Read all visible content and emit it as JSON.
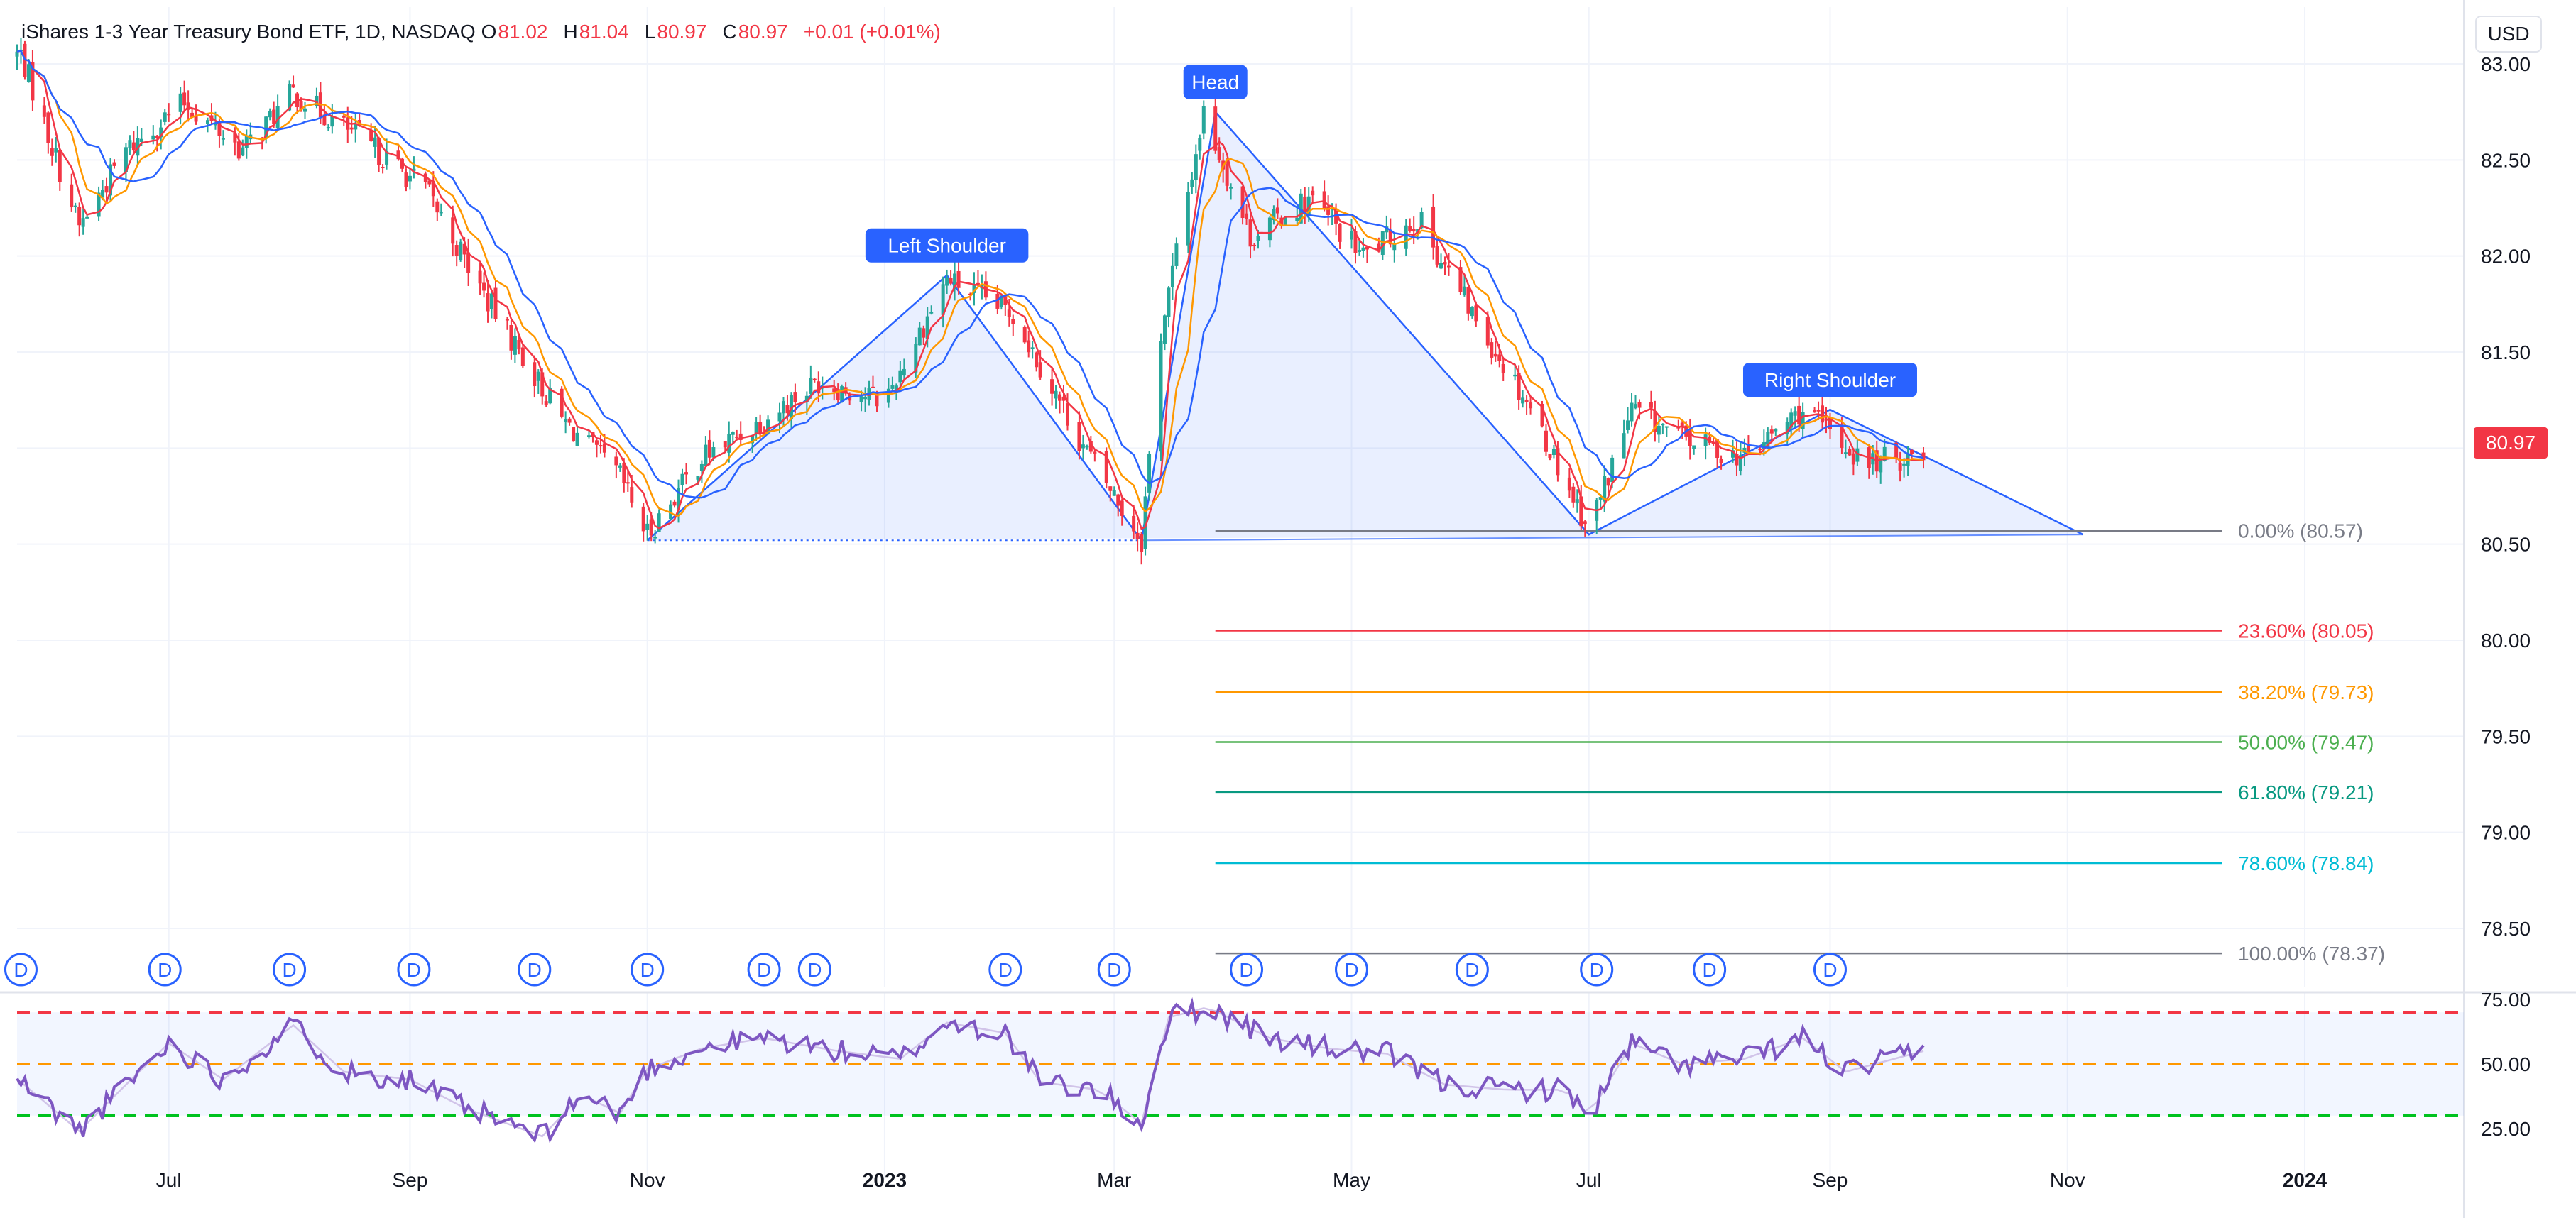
{
  "legend": {
    "symbol": "iShares 1-3 Year Treasury Bond ETF, 1D, NASDAQ",
    "open_key": "O",
    "open": "81.02",
    "high_key": "H",
    "high": "81.04",
    "low_key": "L",
    "low": "80.97",
    "close_key": "C",
    "close": "80.97",
    "change": "+0.01 (+0.01%)"
  },
  "currency": "USD",
  "last_price_label": "80.97",
  "colors": {
    "up": "#26a69a",
    "down": "#f23645",
    "blue": "#2962ff",
    "ma_red": "#f23645",
    "ma_orange": "#ff9800",
    "ma_blue": "#2962ff",
    "rsi_line": "#7e57c2",
    "rsi_upper": "#f23645",
    "rsi_mid": "#ff9800",
    "rsi_lower": "#00c21f",
    "pattern_fill": "rgba(41,98,255,0.10)"
  },
  "chart_data": [
    {
      "type": "candlestick",
      "title": "iShares 1-3 Year Treasury Bond ETF, 1D, NASDAQ",
      "x_ticks": [
        "Jul",
        "Sep",
        "Nov",
        "2023",
        "Mar",
        "May",
        "Jul",
        "Sep",
        "Nov",
        "2024"
      ],
      "y_ticks": [
        "83.00",
        "82.50",
        "82.00",
        "81.50",
        "80.50",
        "80.00",
        "79.50",
        "79.00",
        "78.50"
      ],
      "ylim": [
        78.2,
        83.2
      ],
      "grid": true,
      "price_anchor_points": [
        {
          "date": "2022-05-24",
          "price": 83.05
        },
        {
          "date": "2022-06-08",
          "price": 82.15
        },
        {
          "date": "2022-06-20",
          "price": 82.55
        },
        {
          "date": "2022-07-05",
          "price": 82.8
        },
        {
          "date": "2022-07-20",
          "price": 82.55
        },
        {
          "date": "2022-08-02",
          "price": 82.85
        },
        {
          "date": "2022-08-20",
          "price": 82.6
        },
        {
          "date": "2022-09-05",
          "price": 82.35
        },
        {
          "date": "2022-09-20",
          "price": 81.8
        },
        {
          "date": "2022-10-10",
          "price": 81.15
        },
        {
          "date": "2022-10-25",
          "price": 80.85
        },
        {
          "date": "2022-11-01",
          "price": 80.55
        },
        {
          "date": "2022-11-15",
          "price": 80.95
        },
        {
          "date": "2022-12-01",
          "price": 81.15
        },
        {
          "date": "2022-12-15",
          "price": 81.35
        },
        {
          "date": "2023-01-01",
          "price": 81.25
        },
        {
          "date": "2023-01-17",
          "price": 81.88
        },
        {
          "date": "2023-02-03",
          "price": 81.7
        },
        {
          "date": "2023-02-20",
          "price": 81.05
        },
        {
          "date": "2023-03-08",
          "price": 80.52
        },
        {
          "date": "2023-03-13",
          "price": 81.6
        },
        {
          "date": "2023-03-24",
          "price": 82.75
        },
        {
          "date": "2023-04-05",
          "price": 82.1
        },
        {
          "date": "2023-04-20",
          "price": 82.3
        },
        {
          "date": "2023-05-04",
          "price": 82.0
        },
        {
          "date": "2023-05-18",
          "price": 82.2
        },
        {
          "date": "2023-06-01",
          "price": 81.7
        },
        {
          "date": "2023-06-15",
          "price": 81.25
        },
        {
          "date": "2023-07-01",
          "price": 80.58
        },
        {
          "date": "2023-07-12",
          "price": 81.2
        },
        {
          "date": "2023-07-25",
          "price": 81.05
        },
        {
          "date": "2023-08-10",
          "price": 80.95
        },
        {
          "date": "2023-08-25",
          "price": 81.2
        },
        {
          "date": "2023-09-10",
          "price": 80.92
        },
        {
          "date": "2023-09-25",
          "price": 80.97
        }
      ],
      "pattern": {
        "name": "Head and Shoulders",
        "points": [
          {
            "date": "2022-11-01",
            "price": 80.52
          },
          {
            "date": "2023-01-17",
            "price": 81.9
          },
          {
            "date": "2023-03-08",
            "price": 80.52
          },
          {
            "date": "2023-03-27",
            "price": 82.75
          },
          {
            "date": "2023-07-01",
            "price": 80.55
          },
          {
            "date": "2023-09-01",
            "price": 81.2
          },
          {
            "date": "2023-11-05",
            "price": 80.55
          }
        ],
        "labels": [
          "Left Shoulder",
          "Head",
          "Right Shoulder"
        ]
      },
      "fibonacci": [
        {
          "label": "0.00% (80.57)",
          "price": 80.57,
          "color": "#787b86"
        },
        {
          "label": "23.60% (80.05)",
          "price": 80.05,
          "color": "#f23645"
        },
        {
          "label": "38.20% (79.73)",
          "price": 79.73,
          "color": "#ff9800"
        },
        {
          "label": "50.00% (79.47)",
          "price": 79.47,
          "color": "#4caf50"
        },
        {
          "label": "61.80% (79.21)",
          "price": 79.21,
          "color": "#089981"
        },
        {
          "label": "78.60% (78.84)",
          "price": 78.84,
          "color": "#00bcd4"
        },
        {
          "label": "100.00% (78.37)",
          "price": 78.37,
          "color": "#787b86"
        }
      ],
      "dividend_marker_label": "D",
      "dividend_dates": [
        "2022-05-24",
        "2022-06-30",
        "2022-08-01",
        "2022-09-02",
        "2022-10-03",
        "2022-11-01",
        "2022-12-01",
        "2022-12-14",
        "2023-02-01",
        "2023-03-01",
        "2023-04-04",
        "2023-05-01",
        "2023-06-01",
        "2023-07-03",
        "2023-08-01",
        "2023-09-01"
      ]
    },
    {
      "type": "line",
      "series": [
        {
          "name": "RSI"
        }
      ],
      "y_ticks": [
        "75.00",
        "50.00",
        "25.00"
      ],
      "ylim": [
        20,
        80
      ],
      "levels": [
        70,
        50,
        30
      ],
      "rsi_anchor_points": [
        {
          "date": "2022-05-24",
          "value": 43
        },
        {
          "date": "2022-06-08",
          "value": 24
        },
        {
          "date": "2022-06-20",
          "value": 42
        },
        {
          "date": "2022-07-01",
          "value": 58
        },
        {
          "date": "2022-07-15",
          "value": 44
        },
        {
          "date": "2022-08-02",
          "value": 65
        },
        {
          "date": "2022-08-15",
          "value": 47
        },
        {
          "date": "2022-09-01",
          "value": 44
        },
        {
          "date": "2022-09-15",
          "value": 33
        },
        {
          "date": "2022-10-05",
          "value": 22
        },
        {
          "date": "2022-10-15",
          "value": 38
        },
        {
          "date": "2022-10-25",
          "value": 31
        },
        {
          "date": "2022-11-01",
          "value": 48
        },
        {
          "date": "2022-11-15",
          "value": 56
        },
        {
          "date": "2022-12-01",
          "value": 60
        },
        {
          "date": "2022-12-20",
          "value": 55
        },
        {
          "date": "2023-01-05",
          "value": 52
        },
        {
          "date": "2023-01-17",
          "value": 66
        },
        {
          "date": "2023-02-01",
          "value": 62
        },
        {
          "date": "2023-02-10",
          "value": 43
        },
        {
          "date": "2023-02-25",
          "value": 40
        },
        {
          "date": "2023-03-08",
          "value": 27
        },
        {
          "date": "2023-03-15",
          "value": 68
        },
        {
          "date": "2023-03-25",
          "value": 72
        },
        {
          "date": "2023-04-10",
          "value": 60
        },
        {
          "date": "2023-04-25",
          "value": 56
        },
        {
          "date": "2023-05-10",
          "value": 54
        },
        {
          "date": "2023-05-25",
          "value": 42
        },
        {
          "date": "2023-06-10",
          "value": 40
        },
        {
          "date": "2023-06-25",
          "value": 40
        },
        {
          "date": "2023-07-01",
          "value": 30
        },
        {
          "date": "2023-07-12",
          "value": 58
        },
        {
          "date": "2023-07-25",
          "value": 50
        },
        {
          "date": "2023-08-10",
          "value": 52
        },
        {
          "date": "2023-08-25",
          "value": 60
        },
        {
          "date": "2023-09-05",
          "value": 47
        },
        {
          "date": "2023-09-25",
          "value": 55
        }
      ]
    }
  ]
}
